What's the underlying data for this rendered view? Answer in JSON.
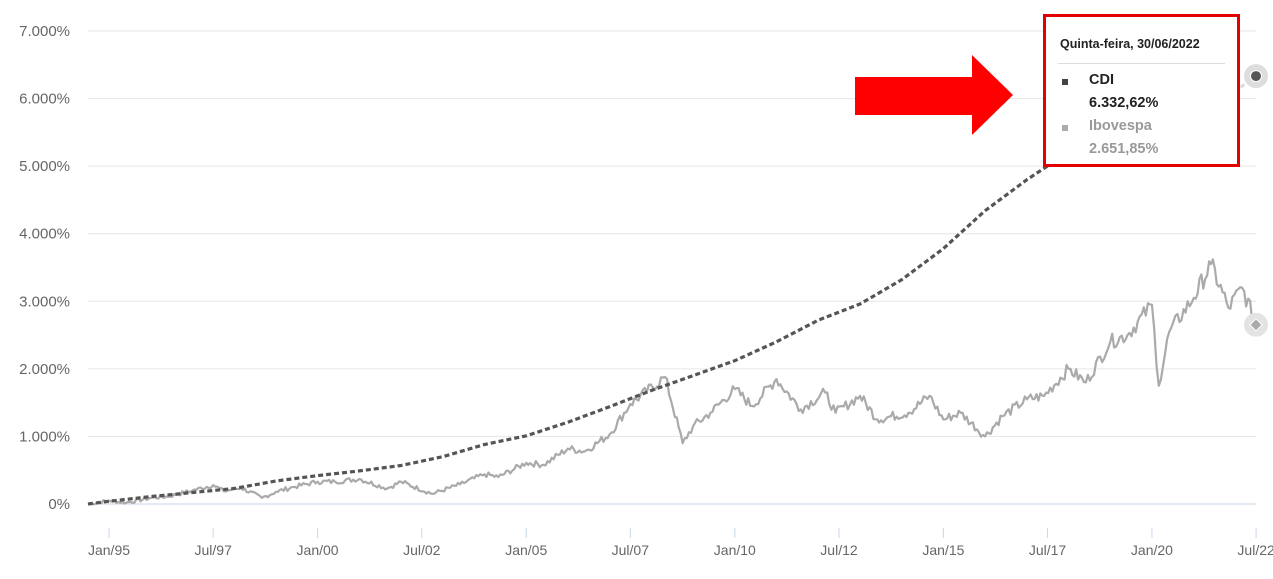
{
  "chart_data": {
    "type": "line",
    "title": "",
    "xlabel": "",
    "ylabel": "",
    "y_tick_labels": [
      "0%",
      "1.000%",
      "2.000%",
      "3.000%",
      "4.000%",
      "5.000%",
      "6.000%",
      "7.000%"
    ],
    "x_tick_labels": [
      "Jan/95",
      "Jul/97",
      "Jan/00",
      "Jul/02",
      "Jan/05",
      "Jul/07",
      "Jan/10",
      "Jul/12",
      "Jan/15",
      "Jul/17",
      "Jan/20",
      "Jul/22"
    ],
    "ylim": [
      0,
      7000
    ],
    "xlim": [
      "1994-07-01",
      "2022-06-30"
    ],
    "grid": "horizontal",
    "series": [
      {
        "name": "CDI",
        "style": "dashed",
        "color": "#555555",
        "x": [
          "1994-07-01",
          "1995-01-01",
          "1996-01-01",
          "1997-01-01",
          "1998-01-01",
          "1999-01-01",
          "2000-01-01",
          "2001-01-01",
          "2002-01-01",
          "2003-01-01",
          "2004-01-01",
          "2005-01-01",
          "2006-01-01",
          "2007-01-01",
          "2008-01-01",
          "2009-01-01",
          "2010-01-01",
          "2011-01-01",
          "2012-01-01",
          "2013-01-01",
          "2014-01-01",
          "2015-01-01",
          "2016-01-01",
          "2017-01-01",
          "2018-01-01",
          "2019-01-01",
          "2020-01-01",
          "2021-01-01",
          "2022-01-01",
          "2022-06-30"
        ],
        "y": [
          0,
          40,
          110,
          170,
          230,
          340,
          420,
          490,
          570,
          700,
          880,
          1010,
          1210,
          1440,
          1680,
          1900,
          2120,
          2400,
          2720,
          2960,
          3320,
          3780,
          4340,
          4800,
          5210,
          5460,
          5660,
          5860,
          6110,
          6332.62
        ]
      },
      {
        "name": "Ibovespa",
        "style": "solid",
        "color": "#aaaaaa",
        "x": [
          "1994-07-01",
          "1995-01-01",
          "1995-06-01",
          "1996-01-01",
          "1996-06-01",
          "1997-01-01",
          "1997-07-01",
          "1997-10-01",
          "1998-03-01",
          "1998-09-01",
          "1999-01-01",
          "1999-06-01",
          "2000-01-01",
          "2000-06-01",
          "2001-01-01",
          "2001-09-01",
          "2002-01-01",
          "2002-10-01",
          "2003-06-01",
          "2004-01-01",
          "2004-05-01",
          "2005-01-01",
          "2005-06-01",
          "2006-01-01",
          "2006-06-01",
          "2007-01-01",
          "2007-07-01",
          "2008-05-01",
          "2008-10-01",
          "2009-01-01",
          "2009-06-01",
          "2010-01-01",
          "2010-06-01",
          "2011-01-01",
          "2011-08-01",
          "2012-03-01",
          "2012-06-01",
          "2013-01-01",
          "2013-06-01",
          "2014-03-01",
          "2014-09-01",
          "2015-01-01",
          "2015-06-01",
          "2016-01-01",
          "2016-06-01",
          "2017-01-01",
          "2017-06-01",
          "2018-01-01",
          "2018-06-01",
          "2019-01-01",
          "2019-06-01",
          "2020-01-01",
          "2020-03-01",
          "2020-06-01",
          "2021-01-01",
          "2021-06-01",
          "2021-11-01",
          "2022-03-01",
          "2022-06-30"
        ],
        "y": [
          0,
          50,
          20,
          90,
          110,
          200,
          280,
          190,
          240,
          90,
          180,
          250,
          330,
          330,
          370,
          230,
          330,
          150,
          290,
          440,
          400,
          610,
          580,
          820,
          780,
          1030,
          1480,
          1880,
          900,
          1150,
          1350,
          1700,
          1450,
          1850,
          1400,
          1650,
          1350,
          1600,
          1250,
          1350,
          1600,
          1250,
          1350,
          1000,
          1300,
          1550,
          1600,
          2000,
          1800,
          2400,
          2500,
          2950,
          1750,
          2550,
          3050,
          3550,
          2900,
          3200,
          2651.85
        ]
      }
    ],
    "tooltip": {
      "date": "Quinta-feira, 30/06/2022",
      "items": [
        {
          "name": "CDI",
          "value": "6.332,62%",
          "color": "#444444"
        },
        {
          "name": "Ibovespa",
          "value": "2.651,85%",
          "color": "#999999"
        }
      ]
    }
  },
  "colors": {
    "highlight_box": "#e30000",
    "arrow": "#ff0000",
    "grid": "#e6e6e6",
    "axis": "#c8d4e3"
  }
}
